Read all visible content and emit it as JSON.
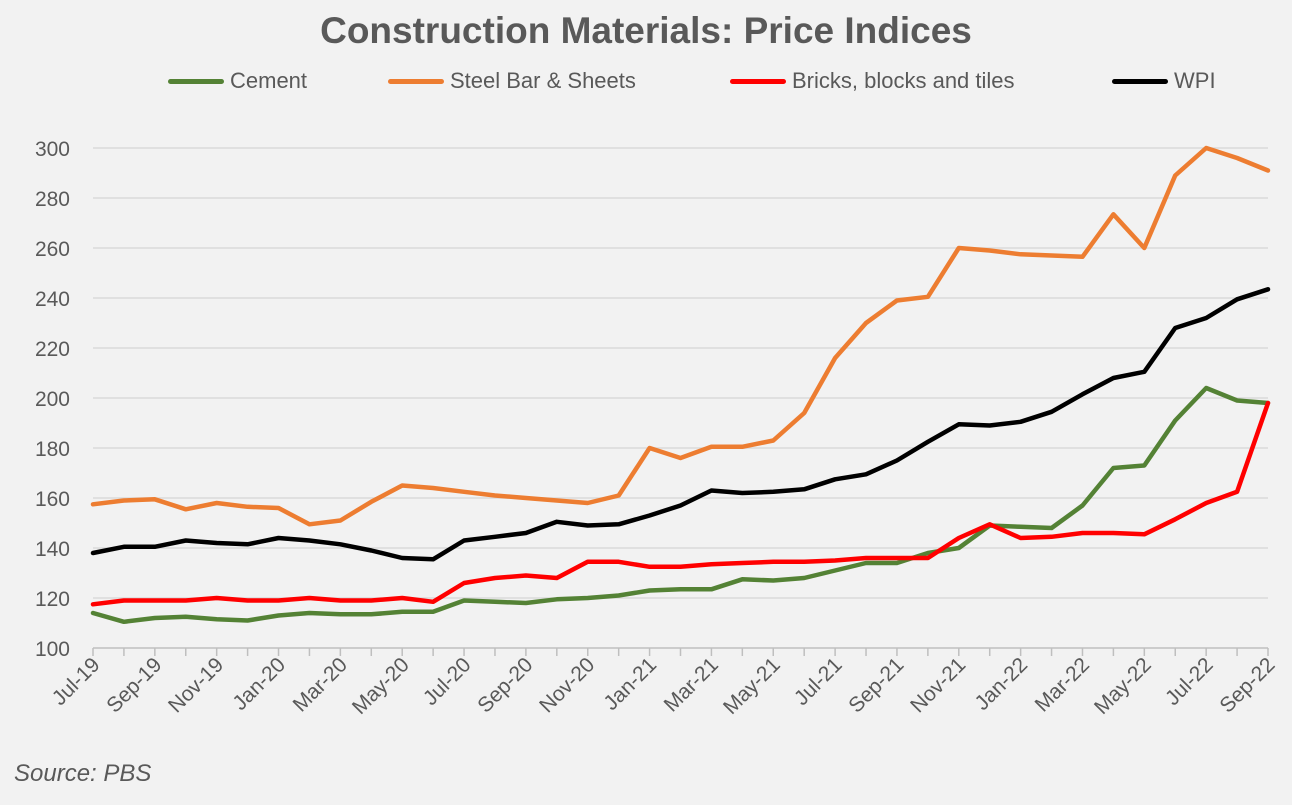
{
  "chart_data": {
    "type": "line",
    "title": "Construction Materials: Price Indices",
    "source": "Source: PBS",
    "xlabel": "",
    "ylabel": "",
    "ylim": [
      100,
      300
    ],
    "yticks": [
      100,
      120,
      140,
      160,
      180,
      200,
      220,
      240,
      260,
      280,
      300
    ],
    "grid": true,
    "legend_position": "top",
    "x": [
      "Jul-19",
      "Aug-19",
      "Sep-19",
      "Oct-19",
      "Nov-19",
      "Dec-19",
      "Jan-20",
      "Feb-20",
      "Mar-20",
      "Apr-20",
      "May-20",
      "Jun-20",
      "Jul-20",
      "Aug-20",
      "Sep-20",
      "Oct-20",
      "Nov-20",
      "Dec-20",
      "Jan-21",
      "Feb-21",
      "Mar-21",
      "Apr-21",
      "May-21",
      "Jun-21",
      "Jul-21",
      "Aug-21",
      "Sep-21",
      "Oct-21",
      "Nov-21",
      "Dec-21",
      "Jan-22",
      "Feb-22",
      "Mar-22",
      "Apr-22",
      "May-22",
      "Jun-22",
      "Jul-22",
      "Aug-22",
      "Sep-22"
    ],
    "xtick_labels": [
      "Jul-19",
      "Sep-19",
      "Nov-19",
      "Jan-20",
      "Mar-20",
      "May-20",
      "Jul-20",
      "Sep-20",
      "Nov-20",
      "Jan-21",
      "Mar-21",
      "May-21",
      "Jul-21",
      "Sep-21",
      "Nov-21",
      "Jan-22",
      "Mar-22",
      "May-22",
      "Jul-22",
      "Sep-22"
    ],
    "series": [
      {
        "name": "Cement",
        "color": "#548235",
        "values": [
          114,
          110.5,
          112,
          112.5,
          111.5,
          111,
          113,
          114,
          113.5,
          113.5,
          114.5,
          114.5,
          119,
          118.5,
          118,
          119.5,
          120,
          121,
          123,
          123.5,
          123.5,
          127.5,
          127,
          128,
          131,
          134,
          134,
          138,
          140,
          149,
          148.5,
          148,
          157,
          172,
          173,
          191,
          204,
          199,
          198
        ]
      },
      {
        "name": "Steel Bar & Sheets",
        "color": "#ed7d31",
        "values": [
          157.5,
          159,
          159.5,
          155.5,
          158,
          156.5,
          156,
          149.5,
          151,
          158.5,
          165,
          164,
          162.5,
          161,
          160,
          159,
          158,
          161,
          180,
          176,
          180.5,
          180.5,
          183,
          194,
          216,
          230,
          239,
          240.5,
          260,
          259,
          257.5,
          257,
          256.5,
          273.5,
          260,
          289,
          300,
          296,
          291
        ]
      },
      {
        "name": "Bricks, blocks and tiles",
        "color": "#ff0000",
        "values": [
          117.5,
          119,
          119,
          119,
          120,
          119,
          119,
          120,
          119,
          119,
          120,
          118.5,
          126,
          128,
          129,
          128,
          134.5,
          134.5,
          132.5,
          132.5,
          133.5,
          134,
          134.5,
          134.5,
          135,
          136,
          136,
          136,
          144,
          149.5,
          144,
          144.5,
          146,
          146,
          145.5,
          151.5,
          158,
          162.5,
          198
        ]
      },
      {
        "name": "WPI",
        "color": "#000000",
        "values": [
          138,
          140.5,
          140.5,
          143,
          142,
          141.5,
          144,
          143,
          141.5,
          139,
          136,
          135.5,
          143,
          144.5,
          146,
          150.5,
          149,
          149.5,
          153,
          157,
          163,
          162,
          162.5,
          163.5,
          167.5,
          169.5,
          175,
          182.5,
          189.5,
          189,
          190.5,
          194.5,
          201.5,
          208,
          210.5,
          228,
          232,
          239.5,
          243.5
        ]
      }
    ]
  }
}
